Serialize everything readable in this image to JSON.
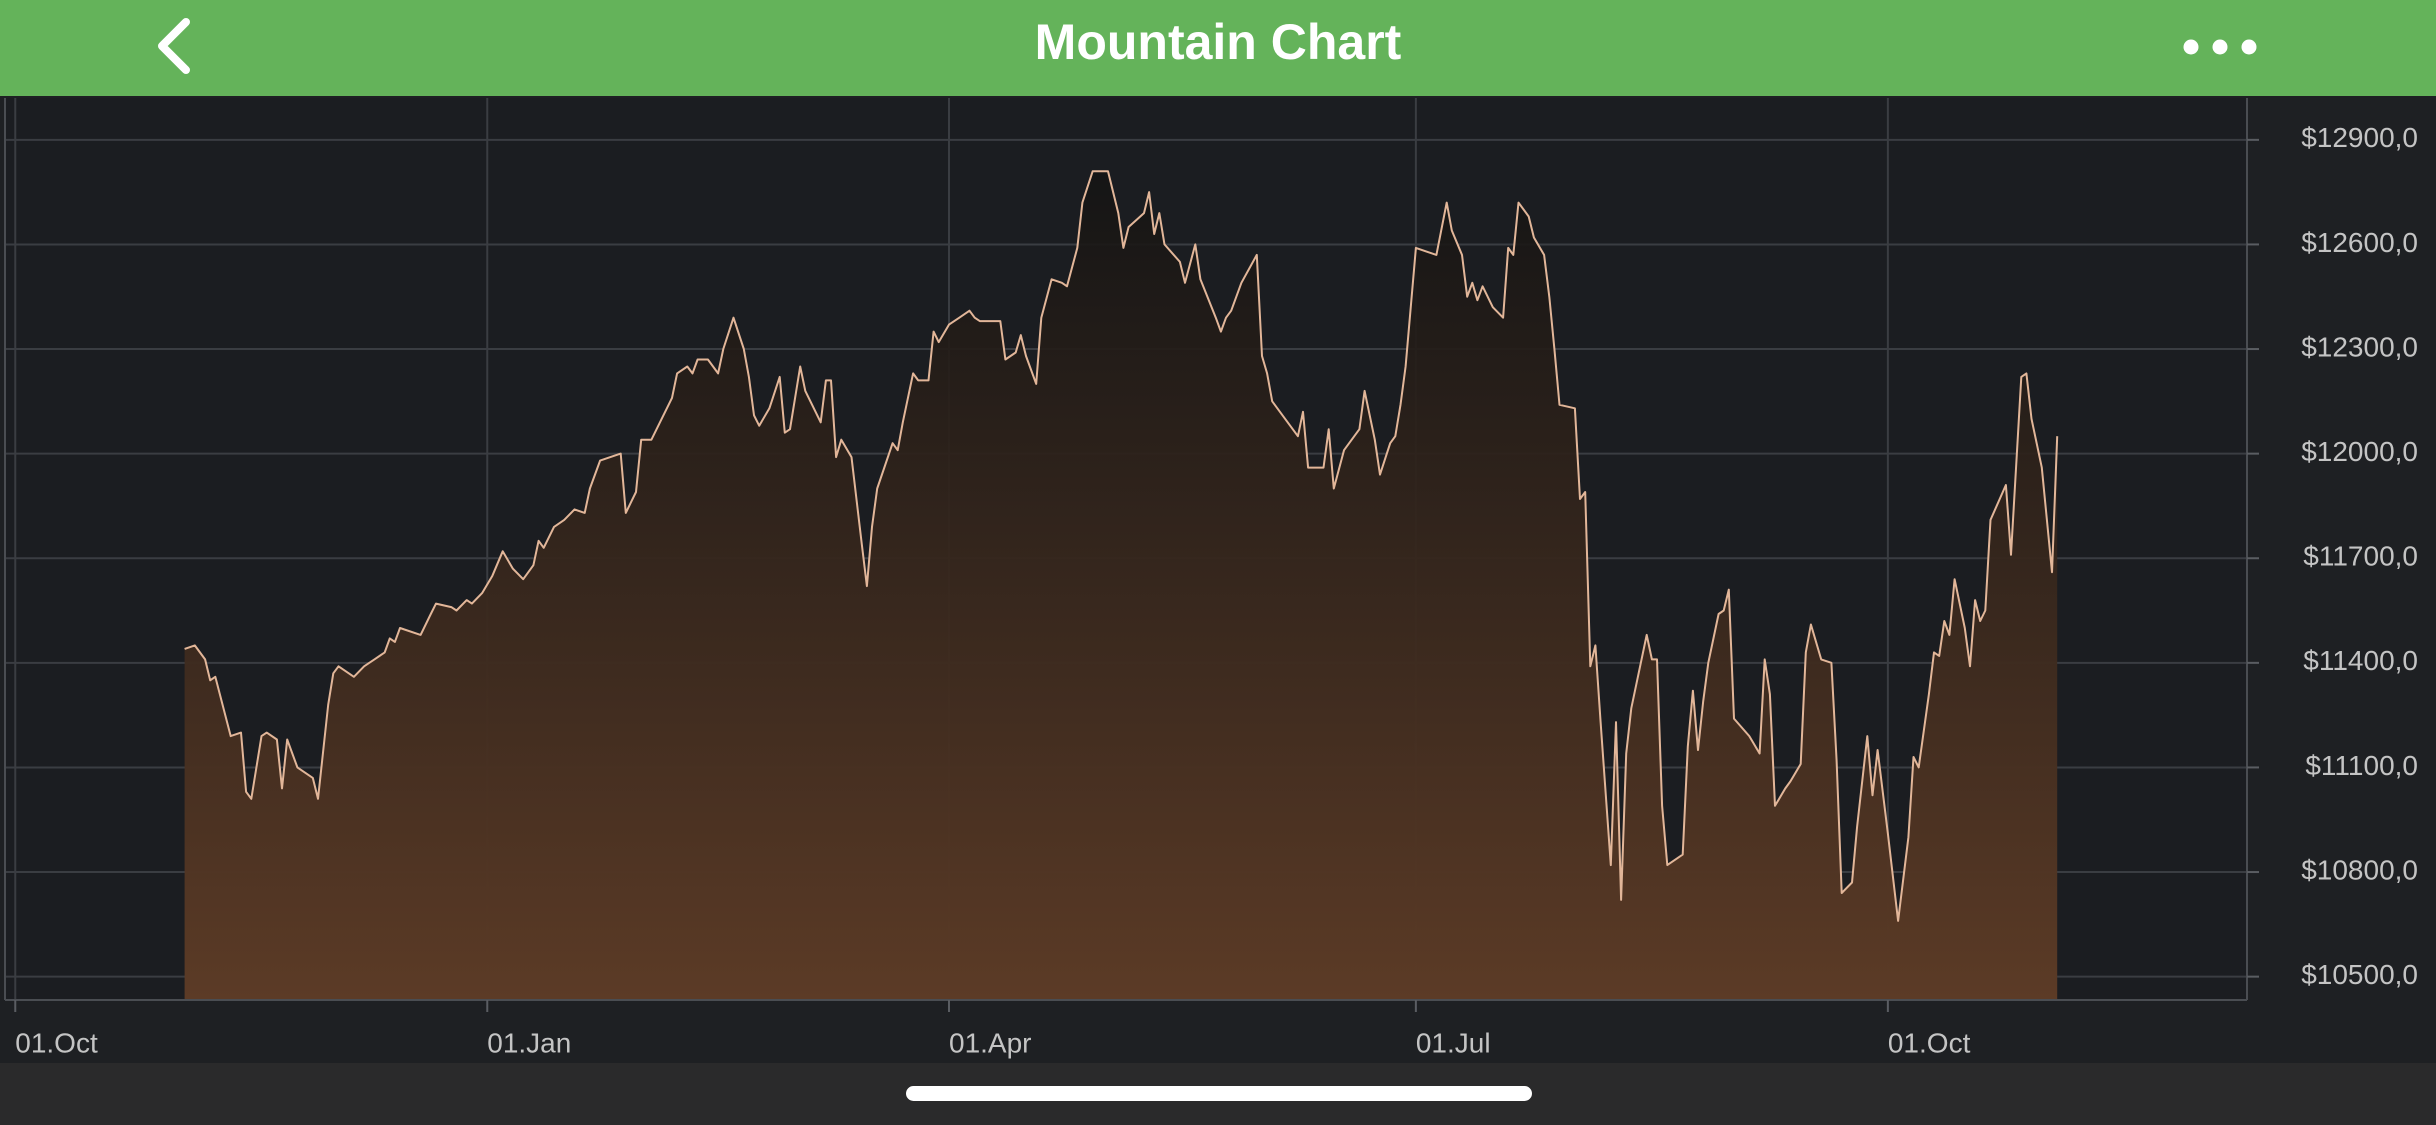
{
  "header": {
    "title": "Mountain Chart"
  },
  "chart_data": {
    "type": "area",
    "xlim": [
      -2,
      435
    ],
    "ylim": [
      10433,
      13020
    ],
    "grid": true,
    "xticks": [
      {
        "value": 0,
        "label": "01.Oct"
      },
      {
        "value": 92,
        "label": "01.Jan"
      },
      {
        "value": 182,
        "label": "01.Apr"
      },
      {
        "value": 273,
        "label": "01.Jul"
      },
      {
        "value": 365,
        "label": "01.Oct"
      }
    ],
    "yticks": [
      {
        "value": 10500,
        "label": "$10500,0"
      },
      {
        "value": 10800,
        "label": "$10800,0"
      },
      {
        "value": 11100,
        "label": "$11100,0"
      },
      {
        "value": 11400,
        "label": "$11400,0"
      },
      {
        "value": 11700,
        "label": "$11700,0"
      },
      {
        "value": 12000,
        "label": "$12000,0"
      },
      {
        "value": 12300,
        "label": "$12300,0"
      },
      {
        "value": 12600,
        "label": "$12600,0"
      },
      {
        "value": 12900,
        "label": "$12900,0"
      }
    ],
    "color": "#e2b699",
    "fill_color": "#5c3b26",
    "x": [
      33,
      35,
      37,
      38,
      39,
      42,
      44,
      45,
      46,
      48,
      49,
      51,
      52,
      53,
      55,
      58,
      59,
      61,
      62,
      63,
      66,
      68,
      70,
      72,
      73,
      74,
      75,
      79,
      81,
      82,
      85,
      86,
      88,
      89,
      91,
      93,
      95,
      97,
      99,
      101,
      102,
      103,
      105,
      107,
      109,
      111,
      112,
      114,
      118,
      119,
      121,
      122,
      124,
      126,
      128,
      129,
      131,
      132,
      133,
      135,
      137,
      138,
      140,
      142,
      143,
      144,
      145,
      147,
      149,
      150,
      151,
      153,
      154,
      157,
      158,
      159,
      160,
      161,
      163,
      165,
      166,
      167,
      168,
      171,
      172,
      173,
      175,
      176,
      178,
      179,
      180,
      182,
      184,
      186,
      187,
      188,
      192,
      193,
      195,
      196,
      197,
      199,
      200,
      202,
      204,
      205,
      207,
      208,
      210,
      213,
      215,
      216,
      217,
      220,
      221,
      222,
      223,
      224,
      227,
      228,
      230,
      231,
      234,
      235,
      236,
      237,
      239,
      242,
      243,
      244,
      245,
      247,
      250,
      251,
      252,
      255,
      256,
      257,
      259,
      262,
      263,
      265,
      266,
      268,
      269,
      270,
      271,
      273,
      275,
      277,
      279,
      280,
      282,
      283,
      284,
      285,
      286,
      288,
      290,
      291,
      292,
      293,
      295,
      296,
      298,
      299,
      300,
      301,
      304,
      305,
      306,
      307,
      308,
      309,
      311,
      312,
      313,
      314,
      315,
      318,
      319,
      320,
      321,
      322,
      325,
      326,
      327,
      328,
      329,
      330,
      332,
      333,
      334,
      335,
      338,
      340,
      341,
      342,
      343,
      345,
      346,
      348,
      349,
      350,
      352,
      354,
      355,
      356,
      358,
      359,
      361,
      362,
      363,
      365,
      367,
      369,
      370,
      371,
      373,
      374,
      375,
      376,
      377,
      378,
      380,
      381,
      382,
      383,
      384,
      385,
      388,
      389,
      391,
      392,
      393,
      395,
      397,
      398
    ],
    "values": [
      11440,
      11450,
      11410,
      11350,
      11360,
      11190,
      11200,
      11030,
      11010,
      11190,
      11200,
      11180,
      11040,
      11180,
      11100,
      11070,
      11010,
      11280,
      11370,
      11390,
      11360,
      11390,
      11410,
      11430,
      11470,
      11460,
      11500,
      11480,
      11540,
      11570,
      11560,
      11550,
      11580,
      11570,
      11600,
      11650,
      11720,
      11670,
      11640,
      11680,
      11750,
      11730,
      11790,
      11810,
      11840,
      11830,
      11900,
      11980,
      12000,
      11830,
      11890,
      12040,
      12040,
      12100,
      12160,
      12230,
      12250,
      12230,
      12270,
      12270,
      12230,
      12300,
      12390,
      12300,
      12220,
      12110,
      12080,
      12130,
      12220,
      12060,
      12070,
      12250,
      12180,
      12090,
      12210,
      12210,
      11990,
      12040,
      11990,
      11740,
      11620,
      11790,
      11900,
      12030,
      12010,
      12090,
      12230,
      12210,
      12210,
      12350,
      12320,
      12370,
      12390,
      12410,
      12390,
      12380,
      12380,
      12270,
      12290,
      12340,
      12280,
      12200,
      12390,
      12500,
      12490,
      12480,
      12590,
      12720,
      12810,
      12810,
      12690,
      12590,
      12650,
      12690,
      12750,
      12630,
      12690,
      12600,
      12550,
      12490,
      12600,
      12500,
      12390,
      12350,
      12390,
      12410,
      12490,
      12570,
      12280,
      12230,
      12150,
      12110,
      12050,
      12120,
      11960,
      11960,
      12070,
      11900,
      12010,
      12070,
      12180,
      12040,
      11940,
      12030,
      12050,
      12140,
      12250,
      12590,
      12580,
      12570,
      12720,
      12640,
      12570,
      12450,
      12490,
      12440,
      12480,
      12420,
      12390,
      12590,
      12570,
      12720,
      12680,
      12620,
      12570,
      12450,
      12300,
      12140,
      12130,
      11870,
      11890,
      11390,
      11450,
      11230,
      10820,
      11230,
      10720,
      11140,
      11270,
      11480,
      11410,
      11410,
      10990,
      10820,
      10850,
      11160,
      11320,
      11150,
      11290,
      11400,
      11540,
      11550,
      11610,
      11240,
      11190,
      11140,
      11410,
      11310,
      10990,
      11040,
      11060,
      11110,
      11430,
      11510,
      11410,
      11400,
      11120,
      10740,
      10770,
      10930,
      11190,
      11020,
      11150,
      10910,
      10660,
      10900,
      11130,
      11100,
      11310,
      11430,
      11420,
      11520,
      11480,
      11640,
      11500,
      11390,
      11580,
      11520,
      11550,
      11810,
      11910,
      11710,
      12220,
      12230,
      12100,
      11960,
      11660,
      12050
    ]
  }
}
